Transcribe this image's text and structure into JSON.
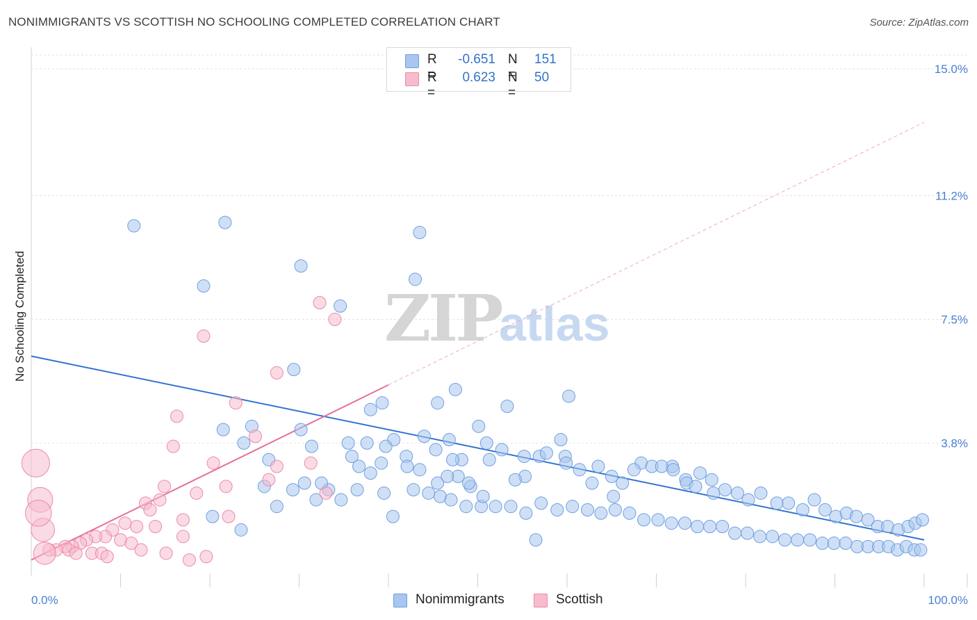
{
  "title": "NONIMMIGRANTS VS SCOTTISH NO SCHOOLING COMPLETED CORRELATION CHART",
  "source": "Source: ZipAtlas.com",
  "watermark": {
    "zip": "ZIP",
    "atlas": "atlas"
  },
  "legend": {
    "r_label": "R =",
    "n_label": "N =",
    "rows": [
      {
        "r": "-0.651",
        "n": "151",
        "color": "#a8c6ef",
        "border": "#6f9ee0"
      },
      {
        "r": "0.623",
        "n": "50",
        "color": "#f6bccd",
        "border": "#ec8aa8"
      }
    ]
  },
  "bottom_legend": [
    "Nonimmigrants",
    "Scottish"
  ],
  "chart_data": {
    "type": "scatter",
    "title": "NONIMMIGRANTS VS SCOTTISH NO SCHOOLING COMPLETED CORRELATION CHART",
    "xlabel": "",
    "ylabel": "No Schooling Completed",
    "xlim": [
      0,
      100
    ],
    "ylim": [
      0,
      15.5
    ],
    "x_tick_labels": [
      "0.0%",
      "100.0%"
    ],
    "y_ticks": [
      3.8,
      7.5,
      11.2,
      15.0
    ],
    "y_tick_labels": [
      "3.8%",
      "7.5%",
      "11.2%",
      "15.0%"
    ],
    "grid": true,
    "legend_placement": "top-center",
    "series": [
      {
        "name": "Nonimmigrants",
        "color": "#a8c6ef",
        "stroke": "#6f9ee0",
        "trend": {
          "x": [
            0,
            100
          ],
          "y": [
            6.4,
            0.9
          ],
          "color": "#2f74d0"
        },
        "points": [
          [
            11.5,
            10.3
          ],
          [
            21.7,
            10.4
          ],
          [
            43.5,
            10.1
          ],
          [
            19.3,
            8.5
          ],
          [
            30.2,
            9.1
          ],
          [
            43.0,
            8.7
          ],
          [
            34.6,
            7.9
          ],
          [
            29.4,
            6.0
          ],
          [
            47.5,
            5.4
          ],
          [
            39.3,
            5.0
          ],
          [
            53.3,
            4.9
          ],
          [
            60.2,
            5.2
          ],
          [
            38.0,
            4.8
          ],
          [
            45.5,
            5.0
          ],
          [
            21.5,
            4.2
          ],
          [
            24.7,
            4.3
          ],
          [
            30.2,
            4.2
          ],
          [
            23.8,
            3.8
          ],
          [
            26.6,
            3.3
          ],
          [
            31.4,
            3.7
          ],
          [
            45.3,
            3.6
          ],
          [
            36.7,
            3.1
          ],
          [
            35.5,
            3.8
          ],
          [
            35.9,
            3.4
          ],
          [
            42.0,
            3.4
          ],
          [
            48.2,
            3.3
          ],
          [
            42.1,
            3.1
          ],
          [
            47.8,
            2.8
          ],
          [
            51.3,
            3.3
          ],
          [
            55.3,
            2.8
          ],
          [
            59.3,
            3.9
          ],
          [
            55.2,
            3.4
          ],
          [
            51.0,
            3.8
          ],
          [
            52.7,
            3.6
          ],
          [
            59.8,
            3.4
          ],
          [
            40.6,
            3.9
          ],
          [
            39.2,
            3.2
          ],
          [
            37.6,
            3.8
          ],
          [
            39.7,
            3.7
          ],
          [
            43.5,
            3.0
          ],
          [
            45.5,
            2.6
          ],
          [
            46.6,
            2.8
          ],
          [
            56.9,
            3.4
          ],
          [
            47.2,
            3.3
          ],
          [
            49.2,
            2.5
          ],
          [
            57.7,
            3.5
          ],
          [
            59.9,
            3.2
          ],
          [
            61.4,
            3.0
          ],
          [
            63.5,
            3.1
          ],
          [
            66.2,
            2.6
          ],
          [
            68.3,
            3.2
          ],
          [
            69.5,
            3.1
          ],
          [
            71.8,
            3.1
          ],
          [
            73.3,
            2.7
          ],
          [
            74.9,
            2.9
          ],
          [
            76.2,
            2.7
          ],
          [
            62.8,
            2.6
          ],
          [
            65.0,
            2.8
          ],
          [
            67.5,
            3.0
          ],
          [
            70.6,
            3.1
          ],
          [
            71.9,
            3.0
          ],
          [
            73.4,
            2.6
          ],
          [
            74.4,
            2.5
          ],
          [
            76.4,
            2.3
          ],
          [
            77.7,
            2.4
          ],
          [
            79.1,
            2.3
          ],
          [
            80.3,
            2.1
          ],
          [
            81.7,
            2.3
          ],
          [
            83.5,
            2.0
          ],
          [
            84.8,
            2.0
          ],
          [
            86.4,
            1.8
          ],
          [
            87.7,
            2.1
          ],
          [
            88.9,
            1.8
          ],
          [
            90.1,
            1.6
          ],
          [
            91.3,
            1.7
          ],
          [
            92.4,
            1.6
          ],
          [
            93.7,
            1.5
          ],
          [
            94.8,
            1.3
          ],
          [
            95.9,
            1.3
          ],
          [
            97.1,
            1.2
          ],
          [
            98.2,
            1.3
          ],
          [
            99.0,
            1.4
          ],
          [
            99.8,
            1.5
          ],
          [
            26.1,
            2.5
          ],
          [
            27.5,
            1.9
          ],
          [
            29.3,
            2.4
          ],
          [
            31.9,
            2.1
          ],
          [
            33.3,
            2.4
          ],
          [
            34.7,
            2.1
          ],
          [
            36.5,
            2.4
          ],
          [
            30.6,
            2.6
          ],
          [
            32.5,
            2.6
          ],
          [
            38.0,
            2.9
          ],
          [
            39.5,
            2.3
          ],
          [
            42.8,
            2.4
          ],
          [
            44.5,
            2.3
          ],
          [
            45.8,
            2.2
          ],
          [
            47.0,
            2.1
          ],
          [
            48.7,
            1.9
          ],
          [
            50.4,
            1.9
          ],
          [
            52.0,
            1.9
          ],
          [
            53.7,
            1.9
          ],
          [
            55.4,
            1.7
          ],
          [
            57.1,
            2.0
          ],
          [
            58.9,
            1.8
          ],
          [
            60.6,
            1.9
          ],
          [
            62.3,
            1.8
          ],
          [
            63.8,
            1.7
          ],
          [
            65.4,
            1.8
          ],
          [
            67.0,
            1.7
          ],
          [
            68.6,
            1.5
          ],
          [
            70.2,
            1.5
          ],
          [
            71.7,
            1.4
          ],
          [
            73.2,
            1.4
          ],
          [
            74.6,
            1.3
          ],
          [
            76.0,
            1.3
          ],
          [
            77.4,
            1.3
          ],
          [
            78.8,
            1.1
          ],
          [
            80.2,
            1.1
          ],
          [
            81.6,
            1.0
          ],
          [
            83.0,
            1.0
          ],
          [
            84.4,
            0.9
          ],
          [
            85.8,
            0.9
          ],
          [
            87.2,
            0.9
          ],
          [
            88.6,
            0.8
          ],
          [
            89.9,
            0.8
          ],
          [
            91.2,
            0.8
          ],
          [
            92.5,
            0.7
          ],
          [
            93.7,
            0.7
          ],
          [
            94.9,
            0.7
          ],
          [
            96.0,
            0.7
          ],
          [
            97.0,
            0.6
          ],
          [
            98.0,
            0.7
          ],
          [
            98.9,
            0.6
          ],
          [
            99.6,
            0.6
          ],
          [
            23.5,
            1.2
          ],
          [
            40.5,
            1.6
          ],
          [
            56.5,
            0.9
          ],
          [
            50.6,
            2.2
          ],
          [
            49.0,
            2.6
          ],
          [
            54.2,
            2.7
          ],
          [
            65.2,
            2.2
          ],
          [
            20.3,
            1.6
          ],
          [
            50.1,
            4.3
          ],
          [
            44.0,
            4.0
          ],
          [
            46.8,
            3.9
          ]
        ]
      },
      {
        "name": "Scottish",
        "color": "#f6bccd",
        "stroke": "#ec8aa8",
        "trend": {
          "x": [
            0,
            100
          ],
          "y": [
            0.3,
            13.4
          ],
          "color": "#e4709a",
          "solid_until_x": 40
        },
        "points": [
          [
            32.3,
            8.0
          ],
          [
            34.0,
            7.5
          ],
          [
            19.3,
            7.0
          ],
          [
            27.5,
            5.9
          ],
          [
            22.9,
            5.0
          ],
          [
            16.3,
            4.6
          ],
          [
            15.9,
            3.7
          ],
          [
            20.4,
            3.2
          ],
          [
            31.3,
            3.2
          ],
          [
            27.5,
            3.1
          ],
          [
            14.9,
            2.5
          ],
          [
            14.4,
            2.1
          ],
          [
            18.5,
            2.3
          ],
          [
            33.0,
            2.3
          ],
          [
            12.8,
            2.0
          ],
          [
            13.3,
            1.8
          ],
          [
            17.0,
            1.5
          ],
          [
            22.1,
            1.6
          ],
          [
            10.5,
            1.4
          ],
          [
            13.9,
            1.3
          ],
          [
            11.8,
            1.3
          ],
          [
            9.1,
            1.2
          ],
          [
            8.3,
            1.0
          ],
          [
            7.2,
            1.0
          ],
          [
            10.0,
            0.9
          ],
          [
            11.2,
            0.8
          ],
          [
            6.2,
            0.9
          ],
          [
            5.5,
            0.8
          ],
          [
            4.6,
            0.7
          ],
          [
            3.8,
            0.7
          ],
          [
            2.8,
            0.6
          ],
          [
            2.0,
            0.6
          ],
          [
            1.5,
            0.5
          ],
          [
            4.2,
            0.6
          ],
          [
            5.0,
            0.5
          ],
          [
            6.8,
            0.5
          ],
          [
            7.9,
            0.5
          ],
          [
            8.5,
            0.4
          ],
          [
            12.3,
            0.6
          ],
          [
            15.1,
            0.5
          ],
          [
            17.7,
            0.3
          ],
          [
            19.6,
            0.4
          ],
          [
            17.0,
            1.0
          ],
          [
            21.8,
            2.5
          ],
          [
            25.1,
            4.0
          ],
          [
            26.6,
            2.7
          ],
          [
            0.5,
            3.2
          ],
          [
            1.0,
            2.1
          ],
          [
            1.3,
            1.2
          ],
          [
            0.8,
            1.7
          ]
        ]
      }
    ]
  }
}
